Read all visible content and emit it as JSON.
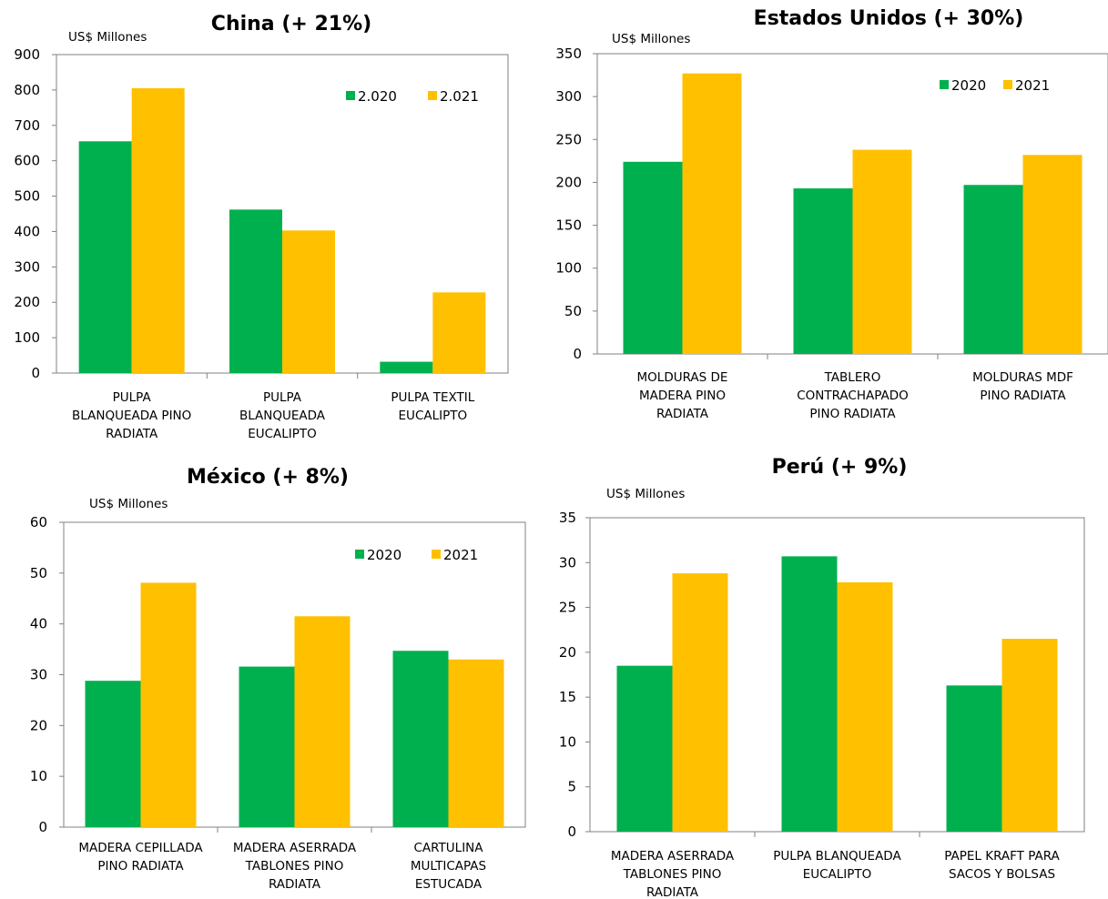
{
  "colors": {
    "green": "#00b04f",
    "yellow": "#ffc000",
    "axis": "#808080"
  },
  "chart_data": [
    {
      "type": "bar",
      "title": "China (+ 21%)",
      "ylabel": "US$ Millones",
      "ylim": [
        0,
        900
      ],
      "ytick_step": 100,
      "legend_position": "top-right",
      "categories": [
        [
          "PULPA",
          "BLANQUEADA PINO",
          "RADIATA"
        ],
        [
          "PULPA",
          "BLANQUEADA",
          "EUCALIPTO"
        ],
        [
          "PULPA TEXTIL",
          "EUCALIPTO"
        ]
      ],
      "series": [
        {
          "name": "2.020",
          "values": [
            655,
            462,
            32
          ]
        },
        {
          "name": "2.021",
          "values": [
            805,
            403,
            228
          ]
        }
      ]
    },
    {
      "type": "bar",
      "title": "Estados Unidos (+ 30%)",
      "ylabel": "US$ Millones",
      "ylim": [
        0,
        350
      ],
      "ytick_step": 50,
      "legend_position": "top-right",
      "categories": [
        [
          "MOLDURAS DE",
          "MADERA PINO",
          "RADIATA"
        ],
        [
          "TABLERO",
          "CONTRACHAPADO",
          "PINO RADIATA"
        ],
        [
          "MOLDURAS MDF",
          "PINO RADIATA"
        ]
      ],
      "series": [
        {
          "name": "2020",
          "values": [
            224,
            193,
            197
          ]
        },
        {
          "name": "2021",
          "values": [
            327,
            238,
            232
          ]
        }
      ]
    },
    {
      "type": "bar",
      "title": "México (+ 8%)",
      "ylabel": "US$ Millones",
      "ylim": [
        0,
        60
      ],
      "ytick_step": 10,
      "legend_position": "top-right",
      "categories": [
        [
          "MADERA CEPILLADA",
          "PINO RADIATA"
        ],
        [
          "MADERA ASERRADA",
          "TABLONES PINO",
          "RADIATA"
        ],
        [
          "CARTULINA",
          "MULTICAPAS",
          "ESTUCADA"
        ]
      ],
      "series": [
        {
          "name": "2020",
          "values": [
            28.8,
            31.6,
            34.7
          ]
        },
        {
          "name": "2021",
          "values": [
            48.1,
            41.5,
            33
          ]
        }
      ]
    },
    {
      "type": "bar",
      "title": "Perú (+ 9%)",
      "ylabel": "US$ Millones",
      "ylim": [
        0,
        35
      ],
      "ytick_step": 5,
      "legend_position": "none",
      "categories": [
        [
          "MADERA ASERRADA",
          "TABLONES PINO",
          "RADIATA"
        ],
        [
          "PULPA BLANQUEADA",
          "EUCALIPTO"
        ],
        [
          "PAPEL KRAFT PARA",
          "SACOS Y BOLSAS"
        ]
      ],
      "series": [
        {
          "name": "",
          "values": [
            18.5,
            30.7,
            16.3
          ]
        },
        {
          "name": "",
          "values": [
            28.8,
            27.8,
            21.5
          ]
        }
      ]
    }
  ]
}
